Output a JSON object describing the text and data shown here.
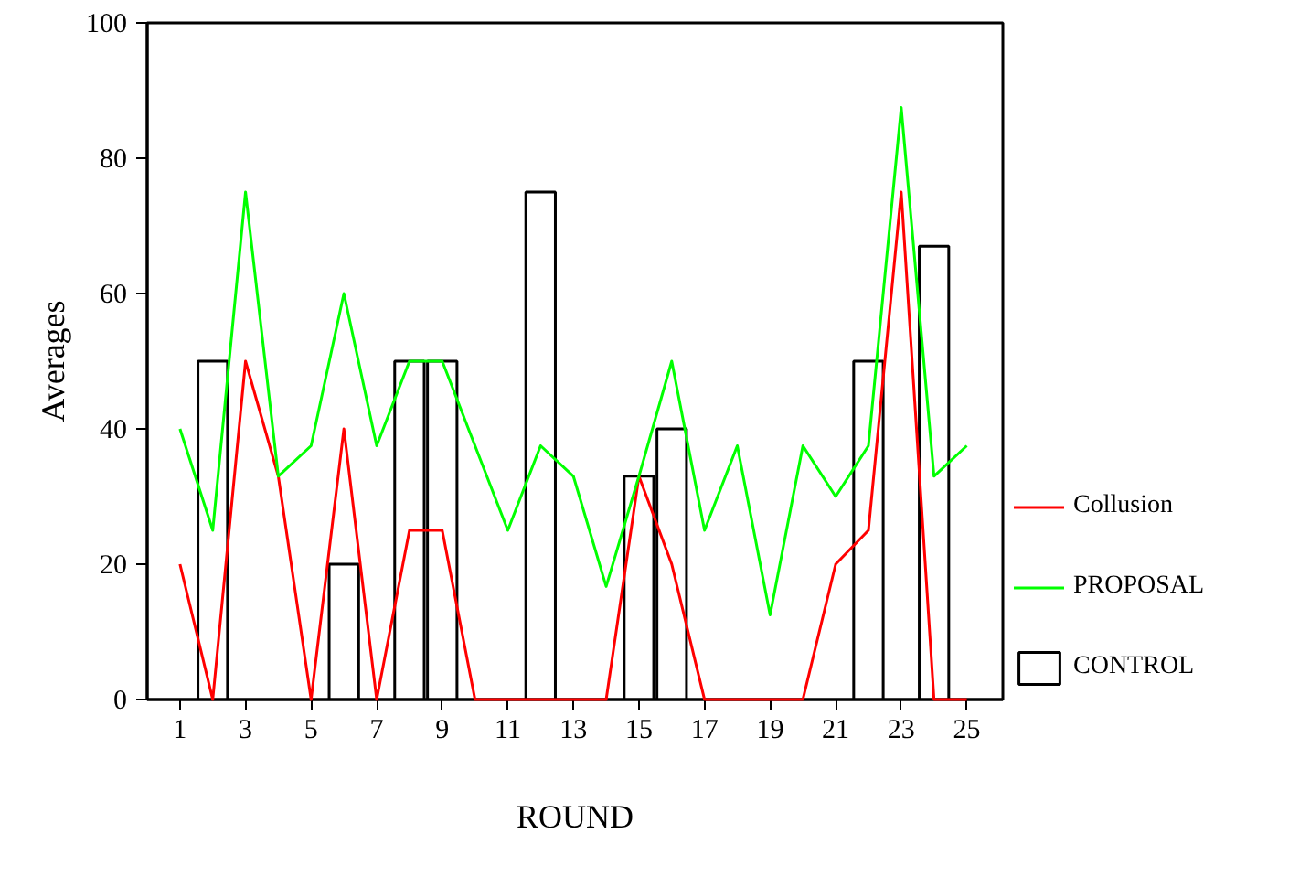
{
  "chart_data": {
    "type": "line",
    "xlabel": "ROUND",
    "ylabel": "Averages",
    "x": [
      1,
      2,
      3,
      4,
      5,
      6,
      7,
      8,
      9,
      10,
      11,
      12,
      13,
      14,
      15,
      16,
      17,
      18,
      19,
      20,
      21,
      22,
      23,
      24,
      25
    ],
    "xlim": [
      0,
      26.1
    ],
    "xticks": [
      1,
      3,
      5,
      7,
      9,
      11,
      13,
      15,
      17,
      19,
      21,
      23,
      25
    ],
    "ylim": [
      0,
      100
    ],
    "yticks": [
      0,
      20,
      40,
      60,
      80,
      100
    ],
    "grid": false,
    "legend": "right",
    "series": [
      {
        "name": "Collusion",
        "color": "#ff0000",
        "values": [
          20,
          0,
          50,
          33,
          0,
          40,
          0,
          25,
          25,
          0,
          0,
          0,
          0,
          0,
          33,
          20,
          0,
          0,
          0,
          0,
          20,
          25,
          75,
          0,
          0
        ]
      },
      {
        "name": "PROPOSAL",
        "color": "#00ff00",
        "values": [
          40,
          25,
          75,
          33,
          37.5,
          60,
          37.5,
          50,
          50,
          37.5,
          25,
          37.5,
          33,
          16.7,
          33,
          50,
          25,
          37.5,
          12.5,
          37.5,
          30,
          37.5,
          87.5,
          33,
          37.5
        ]
      },
      {
        "name": "CONTROL",
        "type": "bar",
        "color": "#ffffff",
        "values": [
          null,
          50,
          null,
          null,
          null,
          20,
          null,
          50,
          50,
          null,
          null,
          75,
          null,
          null,
          33,
          40,
          null,
          null,
          null,
          null,
          null,
          50,
          null,
          67,
          null
        ]
      }
    ]
  }
}
